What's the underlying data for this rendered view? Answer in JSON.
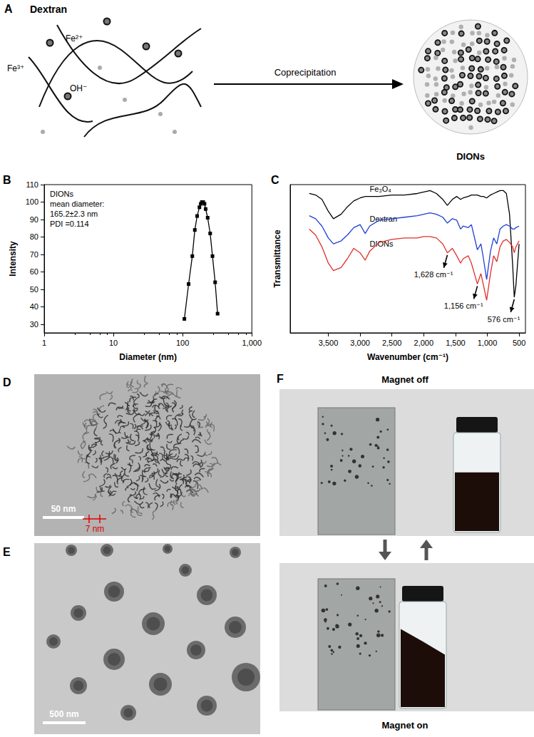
{
  "panel_labels": [
    "A",
    "B",
    "C",
    "D",
    "E",
    "F"
  ],
  "scheme": {
    "title": "Dextran",
    "ions": [
      "Fe³⁺",
      "Fe²⁺",
      "OH⁻"
    ],
    "arrow_label": "Coprecipitation",
    "product": "DIONs"
  },
  "chart_data": [
    {
      "type": "line",
      "x_label": "Diameter (nm)",
      "y_label": "Intensity",
      "annotation": [
        "DIONs",
        "mean diameter:",
        "165.2±2.3 nm",
        "PDI =0.114"
      ],
      "x": [
        106,
        122,
        138,
        150,
        162,
        175,
        183,
        190,
        198,
        207,
        215,
        230,
        250,
        270,
        295,
        320
      ],
      "values": [
        33,
        53,
        69,
        84,
        92,
        97,
        99,
        100,
        100,
        99,
        96,
        91,
        82,
        69,
        54,
        36
      ],
      "color": "#000000",
      "marker": "square",
      "log": "x",
      "grid": false,
      "xlim": [
        1,
        1000
      ],
      "xticks": [
        1,
        10,
        100,
        {
          "value": 1000,
          "label": "1,000"
        }
      ],
      "ylim": [
        25,
        110
      ],
      "yticks": [
        30,
        40,
        50,
        60,
        70,
        80,
        90,
        100,
        110
      ]
    },
    {
      "type": "line",
      "x_label": "Wavenumber (cm⁻¹)",
      "y_label": "Transmittance",
      "marker": "none",
      "grid": false,
      "tick_labels": "x",
      "xlim": [
        4100,
        400
      ],
      "xticks": [
        {
          "value": 3500,
          "label": "3,500"
        },
        {
          "value": 3000,
          "label": "3,000"
        },
        {
          "value": 2500,
          "label": "2,500"
        },
        {
          "value": 2000,
          "label": "2,000"
        },
        {
          "value": 1500,
          "label": "1,500"
        },
        {
          "value": 1000,
          "label": "1,000"
        },
        500
      ],
      "ylim": [
        0,
        100
      ],
      "x": [
        3800,
        3700,
        3600,
        3500,
        3420,
        3300,
        3200,
        3100,
        3000,
        2920,
        2850,
        2700,
        2500,
        2300,
        2100,
        2000,
        1900,
        1800,
        1700,
        1628,
        1550,
        1480,
        1420,
        1380,
        1300,
        1250,
        1156,
        1100,
        1060,
        1010,
        950,
        900,
        850,
        800,
        750,
        700,
        650,
        600,
        576,
        550,
        500
      ],
      "series": [
        {
          "name": "Fe₃O₄",
          "color": "#000000",
          "values": [
            94,
            93,
            90,
            82,
            77,
            80,
            85,
            89,
            91,
            92,
            92,
            92,
            93,
            93,
            94,
            95,
            96,
            94,
            90,
            86,
            90,
            92,
            90,
            91,
            92,
            93,
            93,
            92,
            92,
            91,
            93,
            94,
            95,
            96,
            96,
            94,
            80,
            45,
            24,
            32,
            60
          ]
        },
        {
          "name": "Dextran",
          "color": "#1f3fd6",
          "values": [
            79,
            77,
            72,
            64,
            60,
            62,
            66,
            71,
            73,
            67,
            72,
            76,
            77,
            78,
            79,
            80,
            81,
            80,
            78,
            74,
            77,
            76,
            70,
            72,
            71,
            73,
            56,
            60,
            50,
            36,
            55,
            64,
            60,
            70,
            72,
            73,
            72,
            70,
            70,
            71,
            72
          ]
        },
        {
          "name": "DIONs",
          "color": "#e0302a",
          "values": [
            70,
            66,
            58,
            47,
            42,
            44,
            50,
            57,
            54,
            49,
            55,
            61,
            63,
            64,
            64,
            65,
            65,
            64,
            60,
            54,
            57,
            52,
            47,
            50,
            52,
            47,
            33,
            40,
            32,
            22,
            40,
            52,
            48,
            58,
            62,
            63,
            61,
            58,
            54,
            58,
            62
          ]
        }
      ],
      "annotations": [
        {
          "label": "1,628 cm⁻¹",
          "x": 1628,
          "series": "DIONs"
        },
        {
          "label": "1,156 cm⁻¹",
          "x": 1156,
          "series": "DIONs"
        },
        {
          "label": "576 cm⁻¹",
          "x": 576,
          "series": "Fe₃O₄"
        }
      ]
    }
  ],
  "micrographs": [
    {
      "scale_bar": "50 nm",
      "feature_size": "7 nm"
    },
    {
      "scale_bar": "500 nm"
    }
  ],
  "photos": {
    "before": "Magnet off",
    "after": "Magnet on"
  }
}
